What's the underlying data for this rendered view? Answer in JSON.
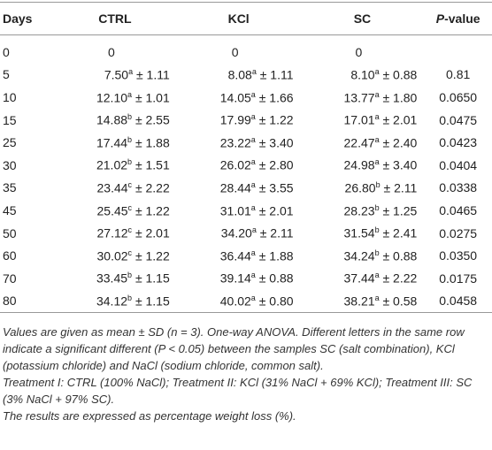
{
  "table": {
    "header": {
      "days": "Days",
      "columns": [
        "CTRL",
        "KCl",
        "SC"
      ],
      "p": {
        "italic": "P",
        "rest": "-value"
      }
    },
    "rows": [
      {
        "days": "0",
        "cells": [
          {
            "main": "0"
          },
          {
            "main": "0"
          },
          {
            "main": "0"
          }
        ]
      },
      {
        "days": "5",
        "cells": [
          {
            "main": "7.50",
            "sup": "a",
            "tail": "± 1.11"
          },
          {
            "main": "8.08",
            "sup": "a",
            "tail": "± 1.11"
          },
          {
            "main": "8.10",
            "sup": "a",
            "tail": "± 0.88"
          }
        ],
        "p": "0.81"
      },
      {
        "days": "10",
        "cells": [
          {
            "main": "12.10",
            "sup": "a",
            "tail": "± 1.01"
          },
          {
            "main": "14.05",
            "sup": "a",
            "tail": "± 1.66"
          },
          {
            "main": "13.77",
            "sup": "a",
            "tail": "± 1.80"
          }
        ],
        "p": "0.0650"
      },
      {
        "days": "15",
        "cells": [
          {
            "main": "14.88",
            "sup": "b",
            "tail": "± 2.55"
          },
          {
            "main": "17.99",
            "sup": "a",
            "tail": "± 1.22"
          },
          {
            "main": "17.01",
            "sup": "a",
            "tail": "± 2.01"
          }
        ],
        "p": "0.0475"
      },
      {
        "days": "25",
        "cells": [
          {
            "main": "17.44",
            "sup": "b",
            "tail": "± 1.88"
          },
          {
            "main": "23.22",
            "sup": "a",
            "tail": "± 3.40"
          },
          {
            "main": "22.47",
            "sup": "a",
            "tail": "± 2.40"
          }
        ],
        "p": "0.0423"
      },
      {
        "days": "30",
        "cells": [
          {
            "main": "21.02",
            "sup": "b",
            "tail": "± 1.51"
          },
          {
            "main": "26.02",
            "sup": "a",
            "tail": "± 2.80"
          },
          {
            "main": "24.98",
            "sup": "a",
            "tail": "± 3.40"
          }
        ],
        "p": "0.0404"
      },
      {
        "days": "35",
        "cells": [
          {
            "main": "23.44",
            "sup": "c",
            "tail": "± 2.22"
          },
          {
            "main": "28.44",
            "sup": "a",
            "tail": "± 3.55"
          },
          {
            "main": "26.80",
            "sup": "b",
            "tail": "± 2.11"
          }
        ],
        "p": "0.0338"
      },
      {
        "days": "45",
        "cells": [
          {
            "main": "25.45",
            "sup": "c",
            "tail": "± 1.22"
          },
          {
            "main": "31.01",
            "sup": "a",
            "tail": "± 2.01"
          },
          {
            "main": "28.23",
            "sup": "b",
            "tail": "± 1.25"
          }
        ],
        "p": "0.0465"
      },
      {
        "days": "50",
        "cells": [
          {
            "main": "27.12",
            "sup": "c",
            "tail": "± 2.01"
          },
          {
            "main": "34.20",
            "sup": "a",
            "tail": "± 2.11"
          },
          {
            "main": "31.54",
            "sup": "b",
            "tail": "± 2.41"
          }
        ],
        "p": "0.0275"
      },
      {
        "days": "60",
        "cells": [
          {
            "main": "30.02",
            "sup": "c",
            "tail": "± 1.22"
          },
          {
            "main": "36.44",
            "sup": "a",
            "tail": "± 1.88"
          },
          {
            "main": "34.24",
            "sup": "b",
            "tail": "± 0.88"
          }
        ],
        "p": "0.0350"
      },
      {
        "days": "70",
        "cells": [
          {
            "main": "33.45",
            "sup": "b",
            "tail": "± 1.15"
          },
          {
            "main": "39.14",
            "sup": "a",
            "tail": "± 0.88"
          },
          {
            "main": "37.44",
            "sup": "a",
            "tail": "± 2.22"
          }
        ],
        "p": "0.0175"
      },
      {
        "days": "80",
        "cells": [
          {
            "main": "34.12",
            "sup": "b",
            "tail": "± 1.15"
          },
          {
            "main": "40.02",
            "sup": "a",
            "tail": "± 0.80"
          },
          {
            "main": "38.21",
            "sup": "a",
            "tail": "± 0.58"
          }
        ],
        "p": "0.0458"
      }
    ]
  },
  "notes": [
    "Values are given as mean ± SD (n = 3). One-way ANOVA. Different letters in the same row indicate a significant different (P < 0.05) between the samples SC (salt combination), KCl (potassium chloride) and NaCl (sodium chloride, common salt).",
    "Treatment I: CTRL (100% NaCl); Treatment II: KCl (31% NaCl + 69% KCl); Treatment III: SC (3% NaCl + 97% SC).",
    "The results are expressed as percentage weight loss (%)."
  ]
}
